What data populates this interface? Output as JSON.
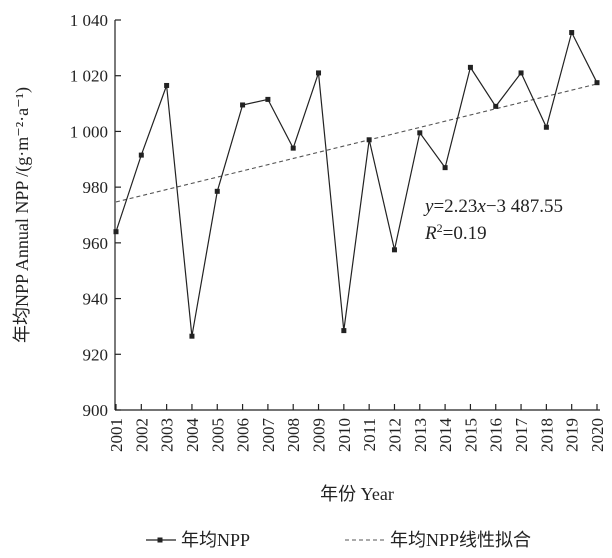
{
  "chart_data": {
    "type": "line",
    "title": "",
    "xlabel": "年份 Year",
    "ylabel": "年均NPP Annual NPP /(g·m⁻²·a⁻¹)",
    "x": [
      "2001",
      "2002",
      "2003",
      "2004",
      "2005",
      "2006",
      "2007",
      "2008",
      "2009",
      "2010",
      "2011",
      "2012",
      "2013",
      "2014",
      "2015",
      "2016",
      "2017",
      "2018",
      "2019",
      "2020"
    ],
    "ylim": [
      900,
      1040
    ],
    "yticks": [
      900,
      920,
      940,
      960,
      980,
      1000,
      1020,
      1040
    ],
    "ytick_labels": [
      "900",
      "920",
      "940",
      "960",
      "980",
      "1 000",
      "1 020",
      "1 040"
    ],
    "grid": false,
    "legend_position": "bottom",
    "series": [
      {
        "name": "年均NPP",
        "style": "solid-with-square-markers",
        "color": "#222222",
        "values": [
          964,
          991.5,
          1016.5,
          926.5,
          978.5,
          1009.5,
          1011.5,
          994,
          1021,
          928.5,
          997,
          957.5,
          999.5,
          987,
          1023,
          1009,
          1021,
          1001.5,
          1035.5,
          1017.5
        ]
      },
      {
        "name": "年均NPP线性拟合",
        "style": "dashed",
        "color": "#555555",
        "fit": {
          "slope": 2.23,
          "intercept": -3487.55,
          "r2": 0.19
        }
      }
    ],
    "annotation": {
      "equation": {
        "y": "y",
        "rhs": "=2.23",
        "x": "x",
        "rest": "−3 487.55"
      },
      "r2": {
        "r": "R",
        "sup": "2",
        "rest": "=0.19"
      }
    }
  }
}
